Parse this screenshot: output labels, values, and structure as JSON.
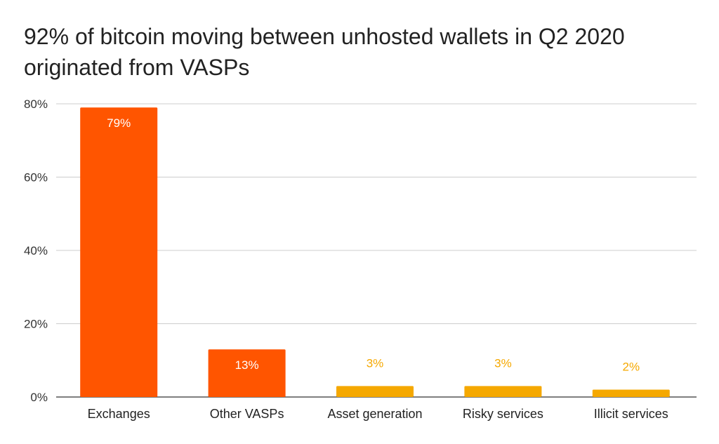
{
  "chart_data": {
    "type": "bar",
    "title_lines": [
      "92% of bitcoin moving between unhosted wallets in Q2 2020",
      "originated from VASPs"
    ],
    "categories": [
      "Exchanges",
      "Other VASPs",
      "Asset generation",
      "Risky services",
      "Illicit services"
    ],
    "values": [
      79,
      13,
      3,
      3,
      2
    ],
    "data_labels": [
      "79%",
      "13%",
      "3%",
      "3%",
      "2%"
    ],
    "bar_colors": [
      "#ff5500",
      "#ff5500",
      "#f5a800",
      "#f5a800",
      "#f5a800"
    ],
    "label_colors": [
      "#ffffff",
      "#ffffff",
      "#f5a800",
      "#f5a800",
      "#f5a800"
    ],
    "label_inside": [
      true,
      true,
      false,
      false,
      false
    ],
    "ylim": [
      0,
      80
    ],
    "yticks": [
      0,
      20,
      40,
      60,
      80
    ],
    "ytick_labels": [
      "0%",
      "20%",
      "40%",
      "60%",
      "80%"
    ],
    "grid": true,
    "xlabel": "",
    "ylabel": ""
  }
}
